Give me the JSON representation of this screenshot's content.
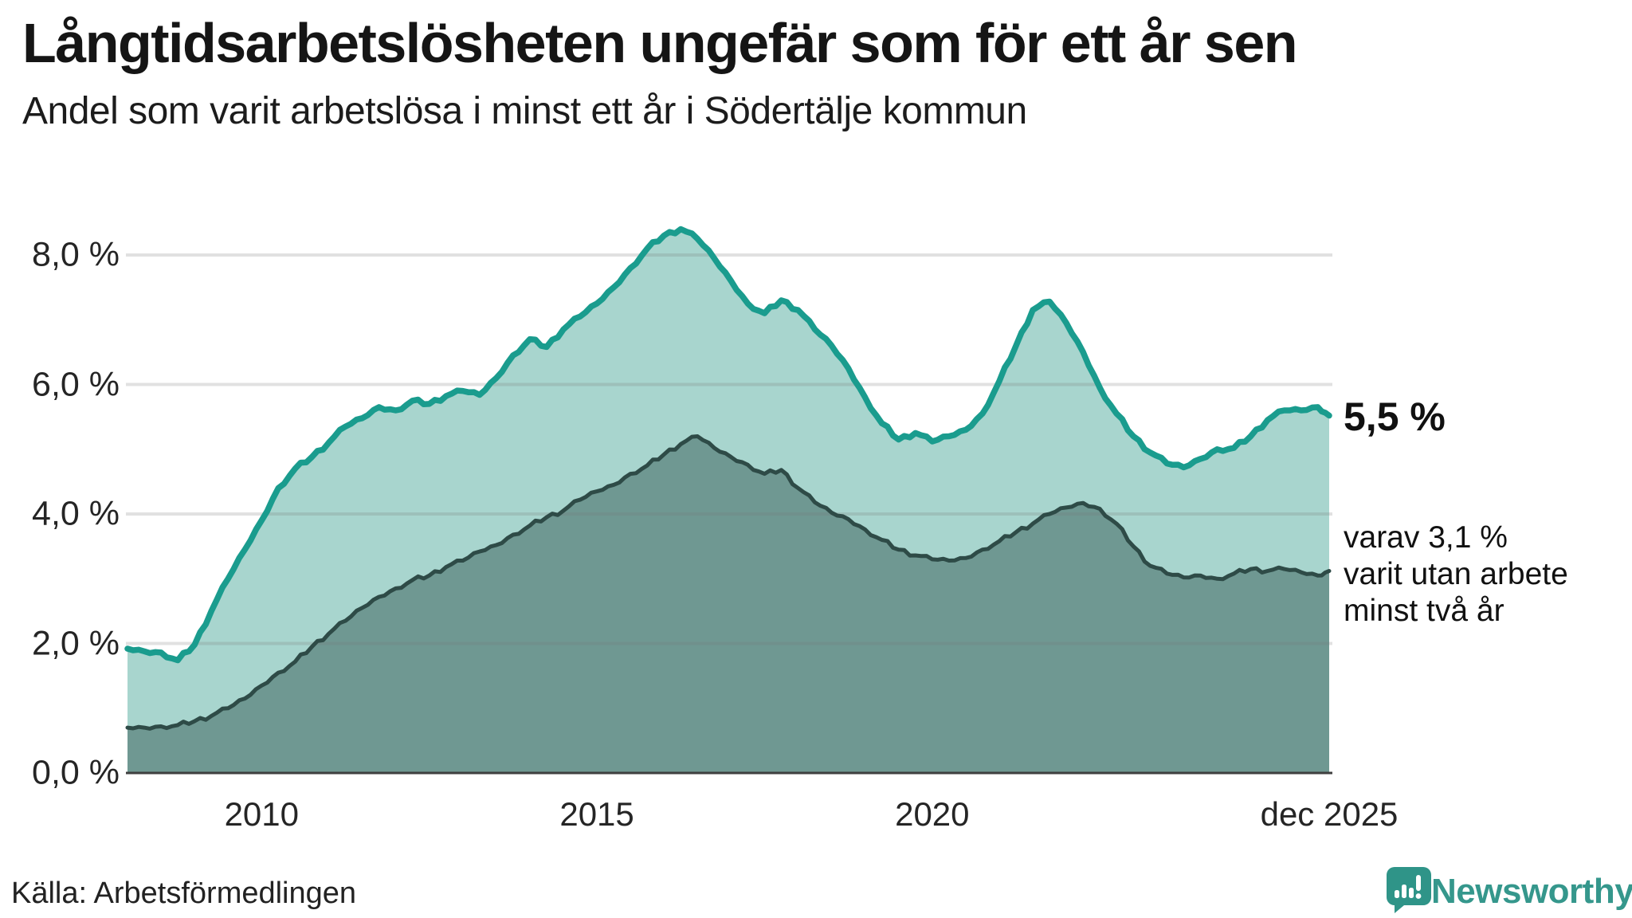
{
  "title": "Långtidsarbetslösheten ungefär som för ett år sen",
  "subtitle": "Andel som varit arbetslösa i minst ett år i Södertälje kommun",
  "source": "Källa: Arbetsförmedlingen",
  "logo": {
    "wordmark": "Newsworthy"
  },
  "annotations": {
    "end_value": "5,5 %",
    "secondary_lines": [
      "varav 3,1 %",
      "varit utan arbete",
      "minst två år"
    ]
  },
  "chart_data": {
    "type": "area",
    "title": "Andel som varit arbetslösa i minst ett år i Södertälje kommun",
    "x_start": 2008.0,
    "x_step": 0.25,
    "x_last": 2025.92,
    "ylim": [
      0,
      8.6
    ],
    "grid": true,
    "colors": {
      "total_line": "#1a9c8e",
      "total_fill": "#a8d5ce",
      "two_year_line": "#2e4b47",
      "two_year_fill": "#6f9892",
      "gridline": "rgba(120,120,120,0.22)",
      "baseline": "#3f3f3f",
      "brand_teal": "#2f9488"
    },
    "yticks": [
      {
        "v": 0,
        "label": "0,0 %"
      },
      {
        "v": 2,
        "label": "2,0 %"
      },
      {
        "v": 4,
        "label": "4,0 %"
      },
      {
        "v": 6,
        "label": "6,0 %"
      },
      {
        "v": 8,
        "label": "8,0 %"
      }
    ],
    "xticks": [
      {
        "v": 2010,
        "label": "2010"
      },
      {
        "v": 2015,
        "label": "2015"
      },
      {
        "v": 2020,
        "label": "2020"
      },
      {
        "v": 2025.92,
        "label": "dec 2025"
      }
    ],
    "series": [
      {
        "name": "arbetslösa minst ett år (totalt)",
        "end_label": "5,5 %",
        "values": [
          1.92,
          1.88,
          1.86,
          1.74,
          1.98,
          2.5,
          3.0,
          3.45,
          3.9,
          4.4,
          4.7,
          4.88,
          5.1,
          5.35,
          5.48,
          5.65,
          5.6,
          5.75,
          5.7,
          5.82,
          5.9,
          5.84,
          6.1,
          6.45,
          6.7,
          6.58,
          6.85,
          7.05,
          7.25,
          7.5,
          7.8,
          8.1,
          8.3,
          8.4,
          8.25,
          7.95,
          7.6,
          7.25,
          7.1,
          7.3,
          7.15,
          6.85,
          6.6,
          6.25,
          5.8,
          5.4,
          5.15,
          5.25,
          5.12,
          5.2,
          5.3,
          5.55,
          6.05,
          6.6,
          7.15,
          7.28,
          6.95,
          6.5,
          5.95,
          5.55,
          5.2,
          4.95,
          4.78,
          4.72,
          4.85,
          5.0,
          5.02,
          5.2,
          5.45,
          5.6,
          5.6,
          5.65,
          5.52
        ]
      },
      {
        "name": "varav utan arbete minst två år",
        "end_label": "3,1 %",
        "values": [
          0.7,
          0.7,
          0.72,
          0.74,
          0.8,
          0.88,
          1.0,
          1.15,
          1.35,
          1.55,
          1.72,
          1.95,
          2.15,
          2.35,
          2.55,
          2.72,
          2.85,
          2.98,
          3.05,
          3.18,
          3.28,
          3.42,
          3.52,
          3.68,
          3.82,
          3.95,
          4.05,
          4.22,
          4.35,
          4.45,
          4.62,
          4.75,
          4.92,
          5.08,
          5.2,
          5.02,
          4.88,
          4.76,
          4.62,
          4.68,
          4.4,
          4.18,
          4.02,
          3.92,
          3.76,
          3.6,
          3.45,
          3.36,
          3.3,
          3.28,
          3.32,
          3.45,
          3.58,
          3.72,
          3.85,
          4.0,
          4.1,
          4.17,
          4.08,
          3.85,
          3.5,
          3.2,
          3.08,
          3.02,
          3.05,
          3.0,
          3.08,
          3.15,
          3.12,
          3.15,
          3.1,
          3.05,
          3.12
        ]
      }
    ]
  }
}
